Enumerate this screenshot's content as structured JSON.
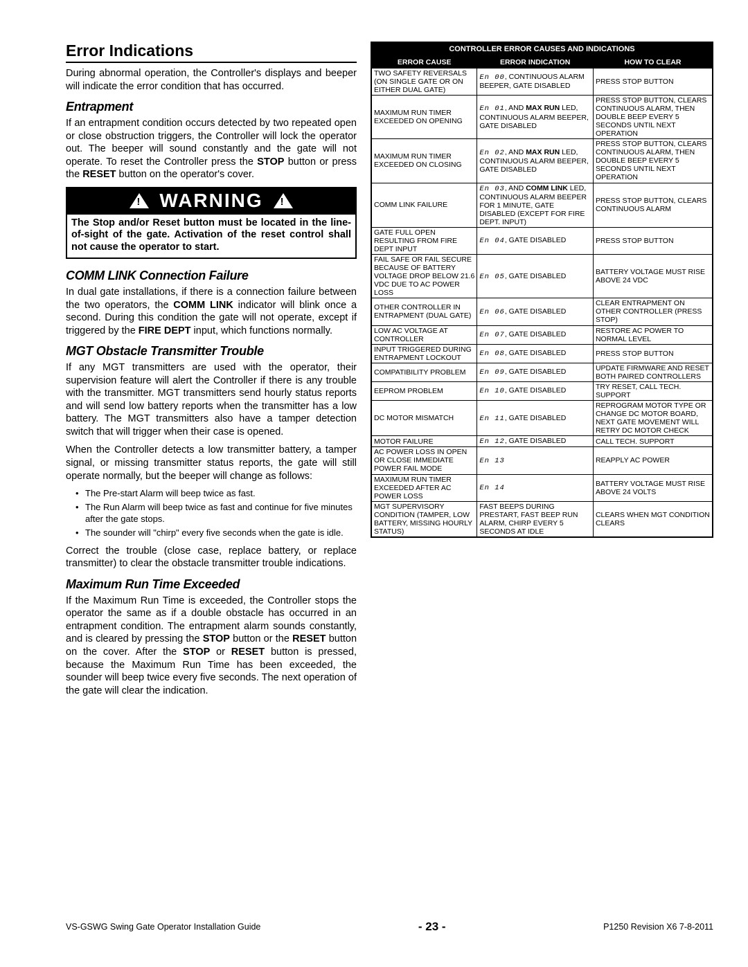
{
  "headings": {
    "main": "Error Indications",
    "entrapment": "Entrapment",
    "comm": "COMM LINK Connection Failure",
    "mgt": "MGT Obstacle Transmitter Trouble",
    "maxrun": "Maximum Run Time Exceeded"
  },
  "paragraphs": {
    "intro": "During abnormal operation, the Controller's displays and beeper will indicate the error condition that has occurred.",
    "entrapment_html": "If an entrapment condition occurs detected by two repeated open or close obstruction triggers, the Controller will lock the operator out. The beeper will sound constantly and the gate will not operate. To reset the Controller press the <span class='bold'>STOP</span> button or press the <span class='bold'>RESET</span> button on the operator's cover.",
    "comm_html": "In dual gate installations, if there is a connection failure between the two operators, the <span class='bold'>COMM LINK</span> indicator will blink once a second. During this condition the gate will not operate, except if triggered by the <span class='bold'>FIRE DEPT</span> input, which functions normally.",
    "mgt1": "If any MGT transmitters are used with the operator, their supervision feature will alert the Controller if there is any trouble with the transmitter. MGT transmitters send hourly status reports and will send low battery reports when the transmitter has a low battery. The MGT transmitters also have a tamper detection switch that will trigger when their case is opened.",
    "mgt2": "When the Controller detects a low transmitter battery, a tamper signal, or missing transmitter status reports, the gate will still operate normally, but the beeper will change as follows:",
    "mgt3": "Correct the trouble (close case, replace battery, or replace transmitter) to clear the obstacle transmitter trouble indications.",
    "maxrun_html": "If the Maximum Run Time is exceeded, the Controller stops the operator the same as if a double obstacle has occurred in an entrapment condition. The entrapment alarm sounds constantly, and is cleared by pressing the <span class='bold'>STOP</span> button or the <span class='bold'>RESET</span> button on the cover. After the <span class='bold'>STOP</span> or <span class='bold'>RESET</span> button is pressed, because the Maximum Run Time has been exceeded, the sounder will beep twice every five seconds. The next operation of the gate will clear the indication."
  },
  "bullets": [
    "The Pre-start Alarm will beep twice as fast.",
    "The Run Alarm will beep twice as fast and continue for five minutes after the gate stops.",
    "The sounder will \"chirp\" every five seconds when the gate is idle."
  ],
  "warning": {
    "label": "WARNING",
    "body": "The Stop and/or Reset button must be located in the line-of-sight of the gate. Activation of the reset control shall not cause the operator to start."
  },
  "table": {
    "title": "CONTROLLER ERROR CAUSES AND INDICATIONS",
    "headers": [
      "ERROR CAUSE",
      "ERROR INDICATION",
      "HOW TO CLEAR"
    ],
    "col_widths": [
      "31%",
      "34%",
      "35%"
    ],
    "rows": [
      [
        "TWO SAFETY REVERSALS (ON SINGLE GATE OR ON EITHER DUAL GATE)",
        "<span class='lcd'>En 00</span>, CONTINUOUS ALARM BEEPER, GATE DISABLED",
        "PRESS STOP BUTTON"
      ],
      [
        "MAXIMUM RUN TIMER EXCEEDED ON OPENING",
        "<span class='lcd'>En 01</span>, AND <b>MAX RUN</b> LED, CONTINUOUS ALARM BEEPER, GATE DISABLED",
        "PRESS STOP BUTTON, CLEARS CONTINUOUS ALARM, THEN DOUBLE BEEP EVERY 5 SECONDS UNTIL NEXT OPERATION"
      ],
      [
        "MAXIMUM RUN TIMER EXCEEDED ON CLOSING",
        "<span class='lcd'>En 02</span>, AND <b>MAX RUN</b> LED, CONTINUOUS ALARM BEEPER, GATE DISABLED",
        "PRESS STOP BUTTON, CLEARS CONTINUOUS ALARM, THEN DOUBLE BEEP EVERY 5 SECONDS UNTIL NEXT OPERATION"
      ],
      [
        "COMM LINK FAILURE",
        "<span class='lcd'>En 03</span>, AND <b>COMM LINK</b> LED, CONTINUOUS ALARM BEEPER FOR 1 MINUTE, GATE DISABLED (EXCEPT FOR FIRE DEPT. INPUT)",
        "PRESS STOP BUTTON, CLEARS CONTINUOUS ALARM"
      ],
      [
        "GATE FULL OPEN RESULTING FROM FIRE DEPT INPUT",
        "<span class='lcd'>En 04</span>, GATE DISABLED",
        "PRESS STOP BUTTON"
      ],
      [
        "FAIL SAFE OR FAIL SECURE BECAUSE OF BATTERY VOLTAGE DROP BELOW 21.6 VDC DUE TO AC POWER LOSS",
        "<span class='lcd'>En 05</span>, GATE DISABLED",
        "BATTERY VOLTAGE MUST RISE ABOVE 24 VDC"
      ],
      [
        "OTHER CONTROLLER IN ENTRAPMENT (DUAL GATE)",
        "<span class='lcd'>En 06</span>, GATE DISABLED",
        "CLEAR ENTRAPMENT ON OTHER CONTROLLER (PRESS STOP)"
      ],
      [
        "LOW AC VOLTAGE AT CONTROLLER",
        "<span class='lcd'>En 07</span>, GATE DISABLED",
        "RESTORE AC POWER TO NORMAL LEVEL"
      ],
      [
        "INPUT TRIGGERED DURING ENTRAPMENT LOCKOUT",
        "<span class='lcd'>En 08</span>, GATE DISABLED",
        "PRESS STOP BUTTON"
      ],
      [
        "COMPATIBILITY PROBLEM",
        "<span class='lcd'>En 09</span>, GATE DISABLED",
        "UPDATE FIRMWARE AND RESET BOTH PAIRED CONTROLLERS"
      ],
      [
        "EEPROM PROBLEM",
        "<span class='lcd'>En 10</span>, GATE DISABLED",
        "TRY RESET, CALL TECH. SUPPORT"
      ],
      [
        "DC MOTOR MISMATCH",
        "<span class='lcd'>En 11</span>, GATE DISABLED",
        "REPROGRAM MOTOR TYPE OR CHANGE DC MOTOR BOARD, NEXT GATE MOVEMENT WILL RETRY DC MOTOR CHECK"
      ],
      [
        "MOTOR FAILURE",
        "<span class='lcd'>En 12</span>, GATE DISABLED",
        "CALL TECH. SUPPORT"
      ],
      [
        "AC POWER LOSS IN OPEN OR CLOSE IMMEDIATE POWER FAIL MODE",
        "<span class='lcd'>En 13</span>",
        "REAPPLY AC POWER"
      ],
      [
        "MAXIMUM RUN TIMER EXCEEDED AFTER AC POWER LOSS",
        "<span class='lcd'>En 14</span>",
        "BATTERY VOLTAGE MUST RISE ABOVE 24 VOLTS"
      ],
      [
        "MGT SUPERVISORY CONDITION (TAMPER, LOW BATTERY, MISSING HOURLY STATUS)",
        "FAST BEEPS DURING PRESTART, FAST BEEP RUN ALARM, CHIRP EVERY 5 SECONDS AT IDLE",
        "CLEARS WHEN MGT CONDITION CLEARS"
      ]
    ]
  },
  "footer": {
    "left": "VS-GSWG   Swing Gate Operator Installation Guide",
    "page": "- 23 -",
    "right": "P1250 Revision X6 7-8-2011"
  }
}
